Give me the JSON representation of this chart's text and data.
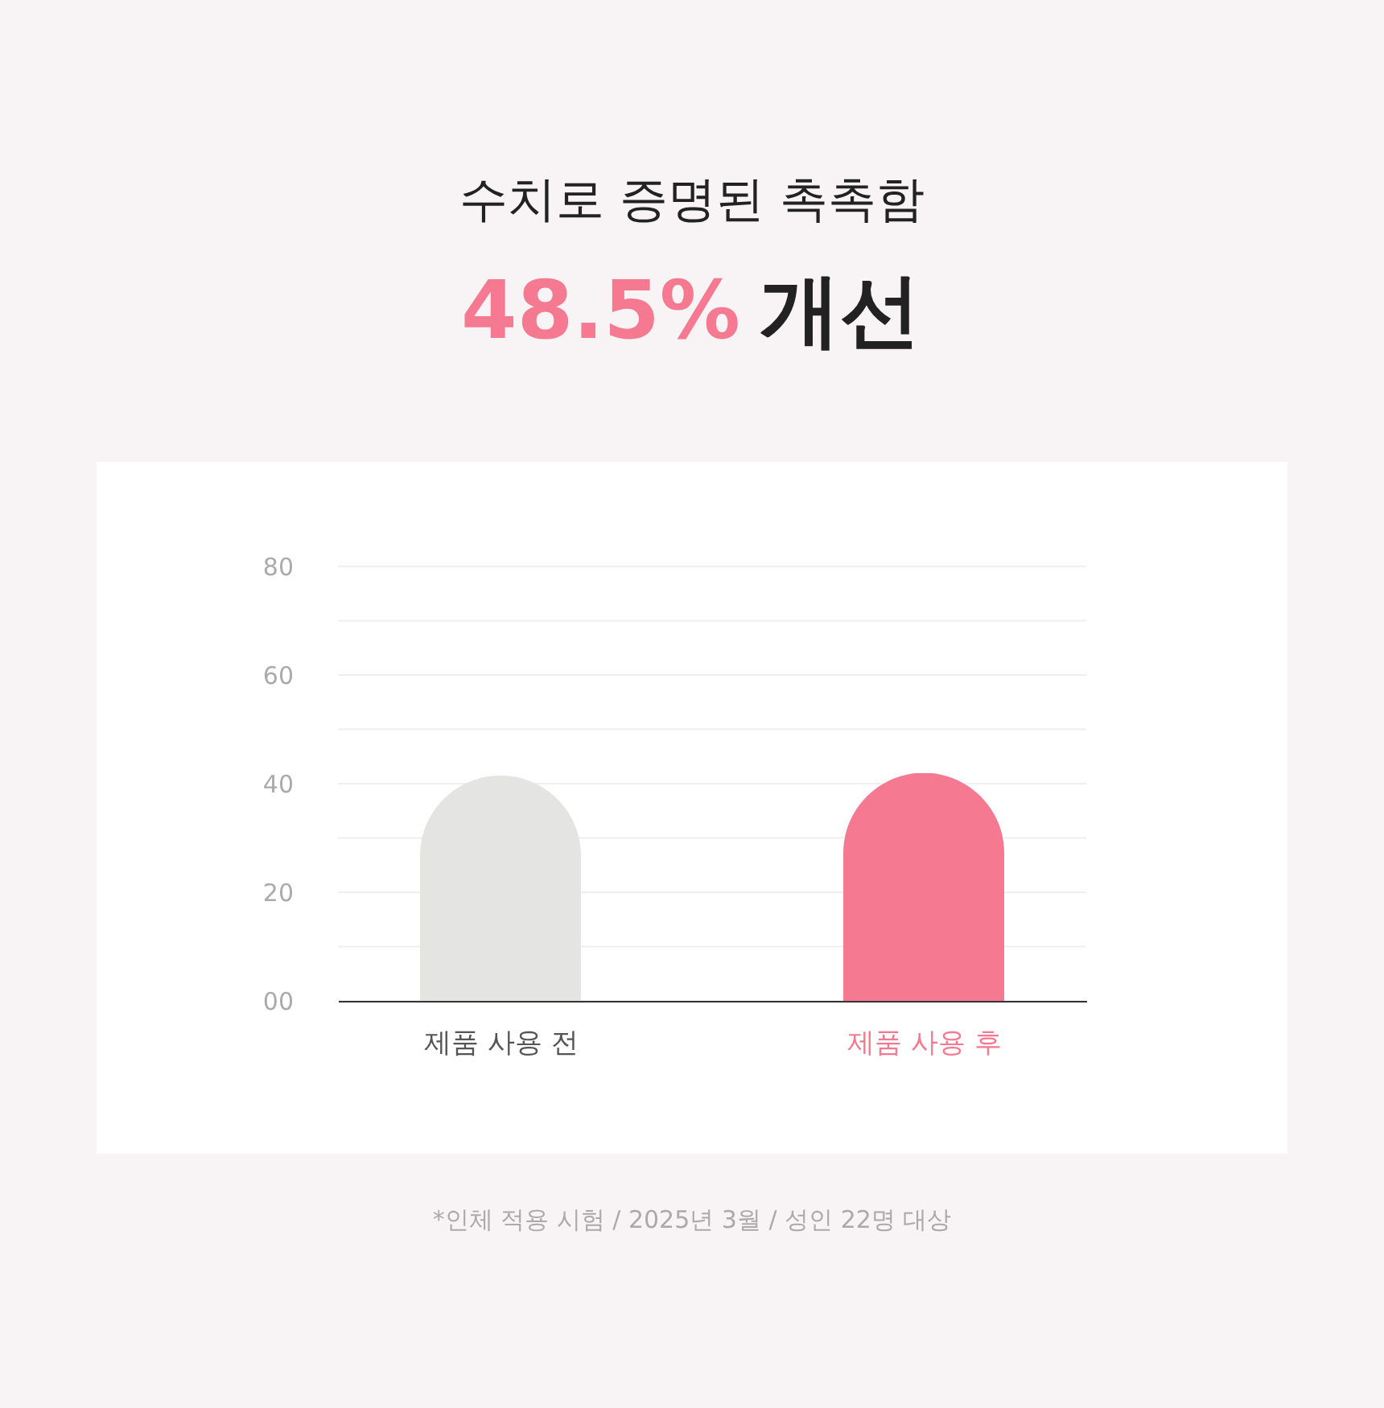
{
  "chart_data": {
    "type": "bar",
    "title": "수치로 증명된 촉촉함",
    "subtitle": "48.5% 개선",
    "categories": [
      "제품 사용 전",
      "제품 사용 후"
    ],
    "values": [
      41.5,
      42
    ],
    "colors": [
      "#e4e4e2",
      "#f47991"
    ],
    "ylim": [
      0,
      80
    ],
    "yticks": [
      {
        "value": 0,
        "label": "00"
      },
      {
        "value": 10,
        "label": null
      },
      20,
      {
        "value": 30,
        "label": null
      },
      40,
      {
        "value": 50,
        "label": null
      },
      60,
      {
        "value": 70,
        "label": null
      },
      80
    ],
    "grid": "y",
    "annotations": [
      "*인체 적용 시험 / 2025년 3월 / 성인 22명 대상"
    ]
  }
}
